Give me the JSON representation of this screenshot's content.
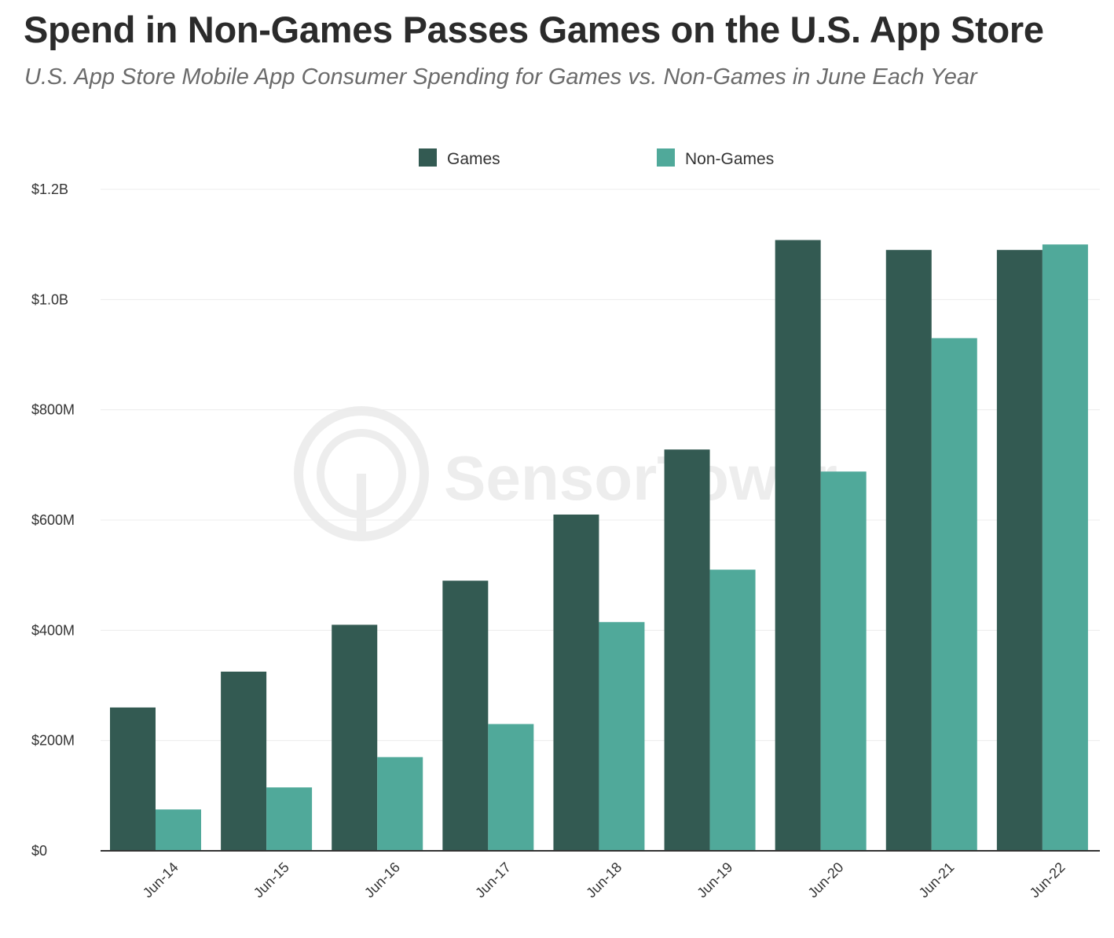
{
  "header": {
    "title": "Spend in Non-Games Passes Games on the U.S. App Store",
    "subtitle": "U.S. App Store Mobile App Consumer Spending for Games vs. Non-Games in June Each Year"
  },
  "watermark": "SensorTower",
  "colors": {
    "games": "#335a52",
    "non_games": "#50a99a",
    "grid": "#ececec",
    "axis": "#333333"
  },
  "chart_data": {
    "type": "bar",
    "title": "Spend in Non-Games Passes Games on the U.S. App Store",
    "subtitle": "U.S. App Store Mobile App Consumer Spending for Games vs. Non-Games in June Each Year",
    "xlabel": "",
    "ylabel": "",
    "categories": [
      "Jun-14",
      "Jun-15",
      "Jun-16",
      "Jun-17",
      "Jun-18",
      "Jun-19",
      "Jun-20",
      "Jun-21",
      "Jun-22"
    ],
    "series": [
      {
        "name": "Games",
        "color": "#335a52",
        "values": [
          260,
          325,
          410,
          490,
          610,
          728,
          1108,
          1090,
          1090
        ]
      },
      {
        "name": "Non-Games",
        "color": "#50a99a",
        "values": [
          75,
          115,
          170,
          230,
          415,
          510,
          688,
          930,
          1100
        ]
      }
    ],
    "ylim": [
      0,
      1200
    ],
    "yticks": [
      0,
      200,
      400,
      600,
      800,
      1000,
      1200
    ],
    "ytick_labels": [
      "$0",
      "$200M",
      "$400M",
      "$600M",
      "$800M",
      "$1.0B",
      "$1.2B"
    ],
    "legend_position": "top-center",
    "grid": true,
    "value_unit": "USD millions"
  }
}
